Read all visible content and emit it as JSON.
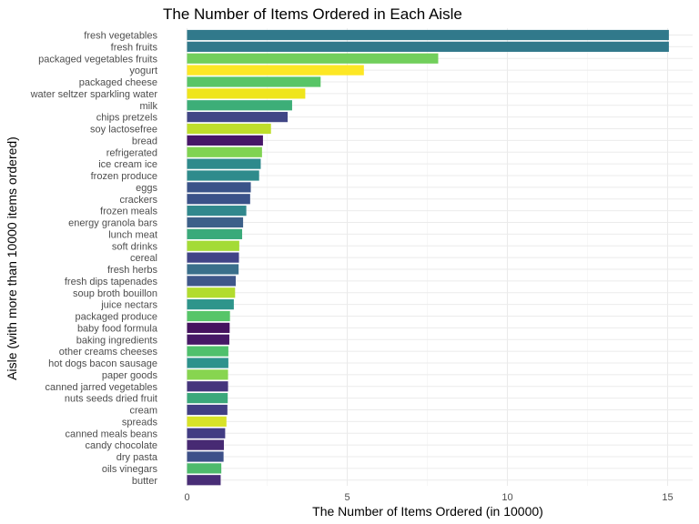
{
  "chart_data": {
    "type": "bar",
    "orientation": "horizontal",
    "title": "The Number of Items Ordered in Each Aisle",
    "xlabel": "The Number of Items Ordered (in 10000)",
    "ylabel": "Aisle (with more than 10000 items ordered)",
    "xlim": [
      0,
      15.8
    ],
    "xticks": [
      0,
      5,
      10,
      15
    ],
    "grid": true,
    "legend": "none",
    "categories": [
      "fresh vegetables",
      "fresh fruits",
      "packaged vegetables fruits",
      "yogurt",
      "packaged cheese",
      "water seltzer sparkling water",
      "milk",
      "chips pretzels",
      "soy lactosefree",
      "bread",
      "refrigerated",
      "ice cream ice",
      "frozen produce",
      "eggs",
      "crackers",
      "frozen meals",
      "energy granola bars",
      "lunch meat",
      "soft drinks",
      "cereal",
      "fresh herbs",
      "fresh dips tapenades",
      "soup broth bouillon",
      "juice nectars",
      "packaged produce",
      "baby food formula",
      "baking ingredients",
      "other creams cheeses",
      "hot dogs bacon sausage",
      "paper goods",
      "canned jarred vegetables",
      "nuts seeds dried fruit",
      "cream",
      "spreads",
      "canned meals beans",
      "candy chocolate",
      "dry pasta",
      "oils vinegars",
      "butter"
    ],
    "values": [
      15.04,
      15.04,
      7.84,
      5.52,
      4.17,
      3.69,
      3.28,
      3.14,
      2.62,
      2.37,
      2.34,
      2.3,
      2.25,
      1.99,
      1.97,
      1.85,
      1.75,
      1.72,
      1.63,
      1.62,
      1.61,
      1.52,
      1.5,
      1.46,
      1.34,
      1.33,
      1.32,
      1.29,
      1.29,
      1.28,
      1.28,
      1.27,
      1.26,
      1.23,
      1.19,
      1.15,
      1.14,
      1.07,
      1.05
    ],
    "colors": [
      "#31798b",
      "#31798b",
      "#72cf5c",
      "#fde725",
      "#58c567",
      "#efe51c",
      "#3dae78",
      "#414686",
      "#bfde2b",
      "#471668",
      "#80d352",
      "#2e8a8c",
      "#2f8b8c",
      "#3a5389",
      "#3b5289",
      "#31888d",
      "#3d6089",
      "#3aaa7a",
      "#a4db36",
      "#414487",
      "#3a6f8b",
      "#3f578a",
      "#b2dc2f",
      "#2e958b",
      "#56c568",
      "#45135f",
      "#461866",
      "#4fc06c",
      "#2d928c",
      "#87d550",
      "#45357c",
      "#3ba87b",
      "#423f84",
      "#d8e228",
      "#423c83",
      "#472a73",
      "#3d5089",
      "#4eba6c",
      "#482d76"
    ]
  }
}
